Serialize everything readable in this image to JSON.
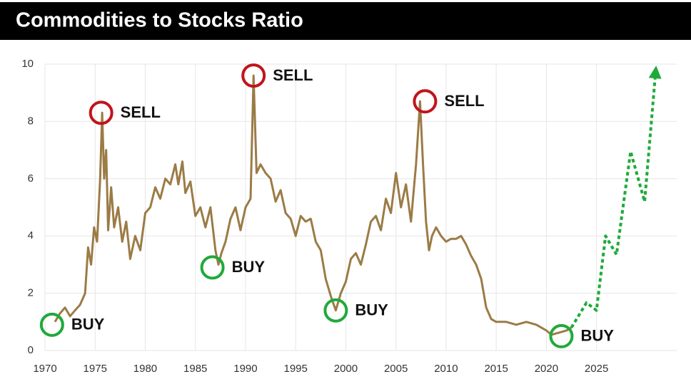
{
  "chart_data": {
    "type": "line",
    "title": "Commodities to Stocks Ratio",
    "xlim": [
      1970,
      2033
    ],
    "xticks": [
      1970,
      1975,
      1980,
      1985,
      1990,
      1995,
      2000,
      2005,
      2010,
      2015,
      2020,
      2025
    ],
    "ylim": [
      0,
      10
    ],
    "yticks": [
      0,
      2,
      4,
      6,
      8,
      10
    ],
    "grid": true,
    "series": [
      {
        "color": "#9b7b46",
        "style": "solid",
        "x": [
          1971.0,
          1971.5,
          1972,
          1972.5,
          1973,
          1973.5,
          1974,
          1974.3,
          1974.6,
          1974.9,
          1975.2,
          1975.5,
          1975.7,
          1975.9,
          1976.1,
          1976.3,
          1976.6,
          1976.9,
          1977.3,
          1977.7,
          1978.1,
          1978.5,
          1979,
          1979.5,
          1980,
          1980.5,
          1981,
          1981.5,
          1982,
          1982.5,
          1983,
          1983.3,
          1983.7,
          1984,
          1984.5,
          1985,
          1985.5,
          1986,
          1986.5,
          1987,
          1987.3,
          1987.6,
          1988,
          1988.5,
          1989,
          1989.5,
          1990,
          1990.5,
          1990.8,
          1991.1,
          1991.5,
          1992,
          1992.5,
          1993,
          1993.5,
          1994,
          1994.5,
          1995,
          1995.5,
          1996,
          1996.5,
          1997,
          1997.5,
          1998,
          1998.5,
          1999,
          1999.5,
          2000,
          2000.5,
          2001,
          2001.5,
          2002,
          2002.5,
          2003,
          2003.5,
          2004,
          2004.5,
          2005,
          2005.5,
          2006,
          2006.5,
          2007,
          2007.4,
          2007.7,
          2008,
          2008.3,
          2008.6,
          2009,
          2009.5,
          2010,
          2010.5,
          2011,
          2011.5,
          2012,
          2012.5,
          2013,
          2013.5,
          2014,
          2014.5,
          2015,
          2016,
          2017,
          2018,
          2019,
          2020,
          2020.5,
          2021,
          2021.5,
          2022,
          2022.5
        ],
        "values": [
          1.0,
          1.3,
          1.5,
          1.2,
          1.4,
          1.6,
          2.0,
          3.6,
          3.0,
          4.3,
          3.8,
          6.0,
          8.3,
          6.0,
          7.0,
          4.2,
          5.7,
          4.3,
          5.0,
          3.8,
          4.5,
          3.2,
          4.0,
          3.5,
          4.8,
          5.0,
          5.7,
          5.3,
          6.0,
          5.8,
          6.5,
          5.8,
          6.6,
          5.5,
          5.9,
          4.7,
          5.0,
          4.3,
          5.0,
          3.5,
          3.0,
          3.4,
          3.8,
          4.6,
          5.0,
          4.2,
          5.0,
          5.3,
          9.6,
          6.2,
          6.5,
          6.2,
          6.0,
          5.2,
          5.6,
          4.8,
          4.6,
          4.0,
          4.7,
          4.5,
          4.6,
          3.8,
          3.5,
          2.5,
          1.9,
          1.4,
          2.0,
          2.4,
          3.2,
          3.4,
          3.0,
          3.7,
          4.5,
          4.7,
          4.2,
          5.3,
          4.8,
          6.2,
          5.0,
          5.8,
          4.5,
          6.5,
          8.7,
          6.5,
          4.5,
          3.5,
          4.0,
          4.3,
          4.0,
          3.8,
          3.9,
          3.9,
          4.0,
          3.7,
          3.3,
          3.0,
          2.5,
          1.5,
          1.1,
          1.0,
          1.0,
          0.9,
          1.0,
          0.9,
          0.7,
          0.55,
          0.6,
          0.65,
          0.7,
          0.8
        ]
      },
      {
        "color": "#1faa3a",
        "style": "dotted",
        "x": [
          2022.5,
          2024.0,
          2025.0,
          2025.9,
          2027.0,
          2028.4,
          2029.8,
          2030.9
        ],
        "values": [
          0.8,
          1.67,
          1.4,
          4.0,
          3.35,
          6.95,
          5.2,
          9.75
        ]
      }
    ],
    "annotations": [
      {
        "label": "BUY",
        "x": 1970.7,
        "y": 0.9,
        "color": "#1faa3a"
      },
      {
        "label": "SELL",
        "x": 1975.6,
        "y": 8.3,
        "color": "#c0141c"
      },
      {
        "label": "BUY",
        "x": 1986.7,
        "y": 2.9,
        "color": "#1faa3a"
      },
      {
        "label": "SELL",
        "x": 1990.8,
        "y": 9.6,
        "color": "#c0141c"
      },
      {
        "label": "BUY",
        "x": 1999.0,
        "y": 1.4,
        "color": "#1faa3a"
      },
      {
        "label": "SELL",
        "x": 2007.9,
        "y": 8.7,
        "color": "#c0141c"
      },
      {
        "label": "BUY",
        "x": 2021.5,
        "y": 0.5,
        "color": "#1faa3a"
      }
    ]
  }
}
